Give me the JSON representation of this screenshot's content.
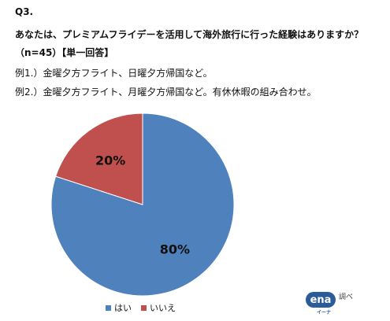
{
  "question": {
    "number": "Q3.",
    "text": "あなたは、プレミアムフライデーを活用して海外旅行に行った経験はありますか？",
    "meta": "（n=45）【単一回答】",
    "example1": "例1.）金曜夕方フライト、日曜夕方帰国など。",
    "example2": "例2.）金曜夕方フライト、月曜夕方帰国など。有休休暇の組み合わせ。"
  },
  "chart_data": {
    "type": "pie",
    "categories": [
      "はい",
      "いいえ"
    ],
    "values": [
      80,
      20
    ],
    "labels": [
      "80%",
      "20%"
    ],
    "colors": [
      "#4f81bd",
      "#c0504d"
    ],
    "legend_position": "bottom-left"
  },
  "logo": {
    "name": "ena",
    "sub": "イーナ",
    "note": "調べ"
  }
}
